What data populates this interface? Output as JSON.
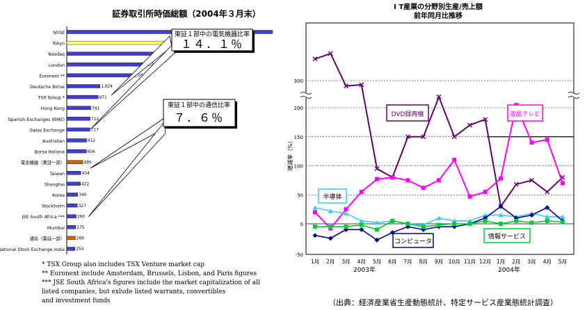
{
  "colors": {
    "bar_default": "#4040cc",
    "bar_highlight": "#ffff66",
    "bar_alt": "#cc6600",
    "dvd": "#660066",
    "lcd": "#ff00ff",
    "semiconductor": "#33ccff",
    "computer": "#000099",
    "info_services": "#00cc33"
  },
  "chart_data": [
    {
      "type": "bar",
      "orientation": "horizontal",
      "title": "証券取引所時価総額（2004年３月末）",
      "categories": [
        "NYSE",
        "Tokyo",
        "Nasdaq",
        "London",
        "Euronext **",
        "Deutsche Borse",
        "TSX Group *",
        "Hong Kong",
        "Spanish Exchanges (BME)",
        "Swiss Exchange",
        "Australian",
        "Borsa Italiana",
        "電気機器（東証一部）",
        "Taiwan",
        "Shanghai",
        "Korea",
        "Stockholm",
        "JSE South Africa ***",
        "Mumbai",
        "通信（東証一部）",
        "National Stock Exchange India"
      ],
      "values": [
        null,
        3478,
        2833,
        2454,
        2055,
        1024,
        971,
        741,
        722,
        717,
        612,
        606,
        495,
        434,
        422,
        340,
        327,
        290,
        275,
        266,
        254
      ],
      "value_labels": [
        "",
        "3,478",
        "2,833",
        "2,454",
        "2,055",
        "1,024",
        "971",
        "741",
        "722",
        "717",
        "612",
        "606",
        "495",
        "434",
        "422",
        "340",
        "327",
        "290",
        "275",
        "266",
        "254"
      ],
      "highlight": {
        "Tokyo": "bar_highlight",
        "電気機器（東証一部）": "bar_alt",
        "通信（東証一部）": "bar_alt"
      },
      "xlim": [
        0,
        3700
      ],
      "callouts": [
        {
          "label": "東証１部中の電気機器比率",
          "value": "１４．１％"
        },
        {
          "label": "東証１部中の通信比率",
          "value": "７．６％"
        }
      ],
      "footnotes": [
        "* TSX Group also includes TSX Venture market cap",
        "** Euronext include Amsterdam, Brussels, Lisbon, and Paris figures",
        "*** JSE South Africa's figures include the market capitalization of all listed companies,  but exlude listed warrants, convertibles and investment funds"
      ]
    },
    {
      "type": "line",
      "title": "I T産業の分野別生産/売上額",
      "subtitle": "前年同月比推移",
      "ylabel": "増減率（%）",
      "x": [
        "1月",
        "2月",
        "3月",
        "4月",
        "5月",
        "6月",
        "7月",
        "8月",
        "9月",
        "10月",
        "11月",
        "12月",
        "1月",
        "2月",
        "3月",
        "4月",
        "5月"
      ],
      "year_labels": [
        "2003年",
        "2004年"
      ],
      "y_ticks": [
        "-50",
        "0",
        "50",
        "100",
        "150",
        "200",
        "300"
      ],
      "y_break": {
        "below": 200,
        "above": 300
      },
      "series": [
        {
          "name": "DVD録再機",
          "color_key": "dvd",
          "marker": "x",
          "values": [
            380,
            400,
            280,
            285,
            95,
            80,
            150,
            150,
            240,
            150,
            170,
            180,
            30,
            68,
            75,
            55,
            80
          ]
        },
        {
          "name": "液晶テレビ",
          "color_key": "lcd",
          "marker": "square",
          "values": [
            20,
            -8,
            25,
            55,
            77,
            80,
            75,
            62,
            75,
            110,
            47,
            55,
            78,
            210,
            140,
            145,
            70
          ]
        },
        {
          "name": "半導体",
          "color_key": "semiconductor",
          "marker": "triangle",
          "values": [
            28,
            22,
            18,
            5,
            2,
            5,
            0,
            -2,
            10,
            5,
            5,
            15,
            15,
            12,
            18,
            12,
            12
          ]
        },
        {
          "name": "コンピュータ",
          "color_key": "computer",
          "marker": "diamond",
          "values": [
            -20,
            -25,
            -10,
            -10,
            -28,
            -15,
            -5,
            -10,
            -5,
            -5,
            0,
            10,
            30,
            10,
            15,
            28,
            5
          ]
        },
        {
          "name": "情報サービス",
          "color_key": "info_services",
          "marker": "square",
          "values": [
            -5,
            -5,
            -5,
            -2,
            -10,
            5,
            0,
            -5,
            -2,
            0,
            0,
            5,
            0,
            5,
            2,
            5,
            3
          ]
        }
      ]
    }
  ],
  "source": "（出典：経済産業省生産動態統計、特定サービス産業態統計調査）"
}
